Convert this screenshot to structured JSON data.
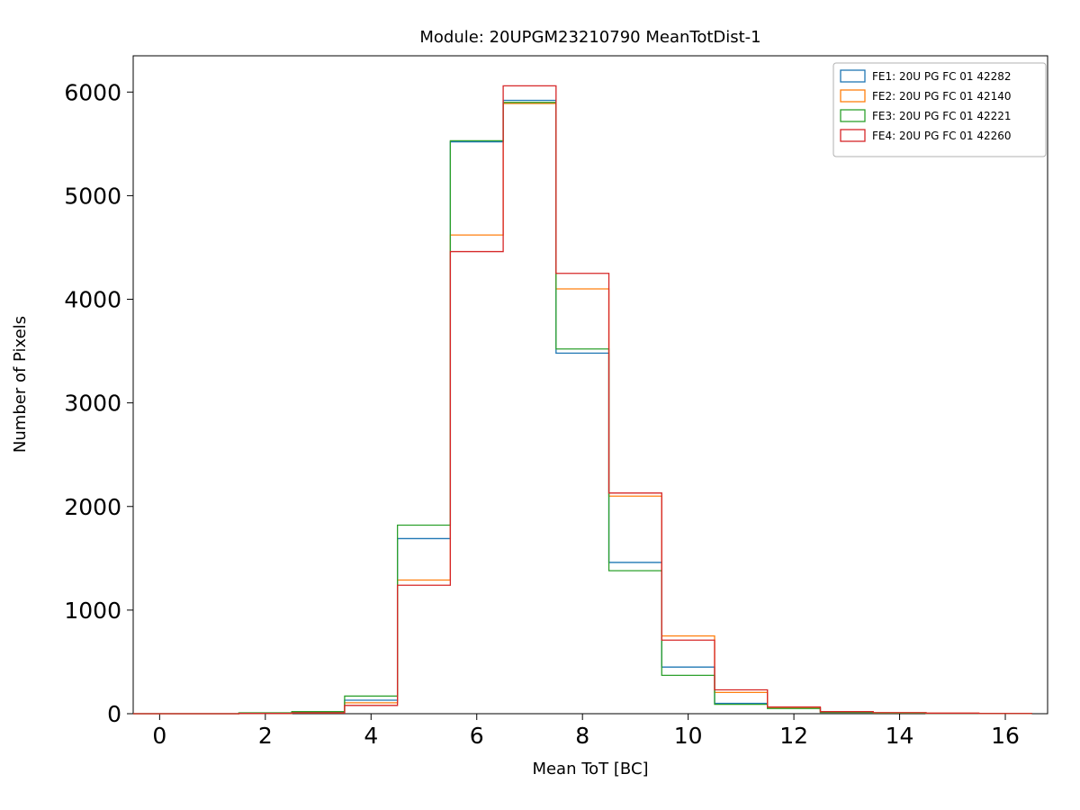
{
  "chart_data": {
    "type": "histogram",
    "histtype": "step",
    "title": "Module: 20UPGM23210790 MeanTotDist-1",
    "xlabel": "Mean ToT [BC]",
    "ylabel": "Number of Pixels",
    "xlim": [
      -0.5,
      16.8
    ],
    "ylim": [
      0,
      6350
    ],
    "xticks": [
      0,
      2,
      4,
      6,
      8,
      10,
      12,
      14,
      16
    ],
    "yticks": [
      0,
      1000,
      2000,
      3000,
      4000,
      5000,
      6000
    ],
    "grid": false,
    "legend_position": "upper right",
    "bin_edges": [
      -0.5,
      0.5,
      1.5,
      2.5,
      3.5,
      4.5,
      5.5,
      6.5,
      7.5,
      8.5,
      9.5,
      10.5,
      11.5,
      12.5,
      13.5,
      14.5,
      15.5,
      16.5
    ],
    "bin_centers": [
      0,
      1,
      2,
      3,
      4,
      5,
      6,
      7,
      8,
      9,
      10,
      11,
      12,
      13,
      14,
      15,
      16
    ],
    "series": [
      {
        "name": "FE1: 20U PG FC 01 42282",
        "color": "#1f77b4",
        "values": [
          0,
          0,
          5,
          12,
          130,
          1690,
          5520,
          5920,
          3480,
          1460,
          450,
          100,
          55,
          15,
          8,
          4,
          2
        ]
      },
      {
        "name": "FE2: 20U PG FC 01 42140",
        "color": "#ff7f0e",
        "values": [
          0,
          0,
          3,
          8,
          105,
          1290,
          4620,
          5890,
          4100,
          2100,
          750,
          205,
          60,
          18,
          10,
          5,
          2
        ]
      },
      {
        "name": "FE3: 20U PG FC 01 42221",
        "color": "#2ca02c",
        "values": [
          0,
          0,
          8,
          20,
          170,
          1820,
          5530,
          5900,
          3520,
          1380,
          370,
          90,
          50,
          12,
          6,
          3,
          1
        ]
      },
      {
        "name": "FE4: 20U PG FC 01 42260",
        "color": "#d62728",
        "values": [
          0,
          0,
          3,
          8,
          80,
          1240,
          4460,
          6060,
          4250,
          2130,
          710,
          230,
          65,
          20,
          10,
          5,
          2
        ]
      }
    ]
  }
}
